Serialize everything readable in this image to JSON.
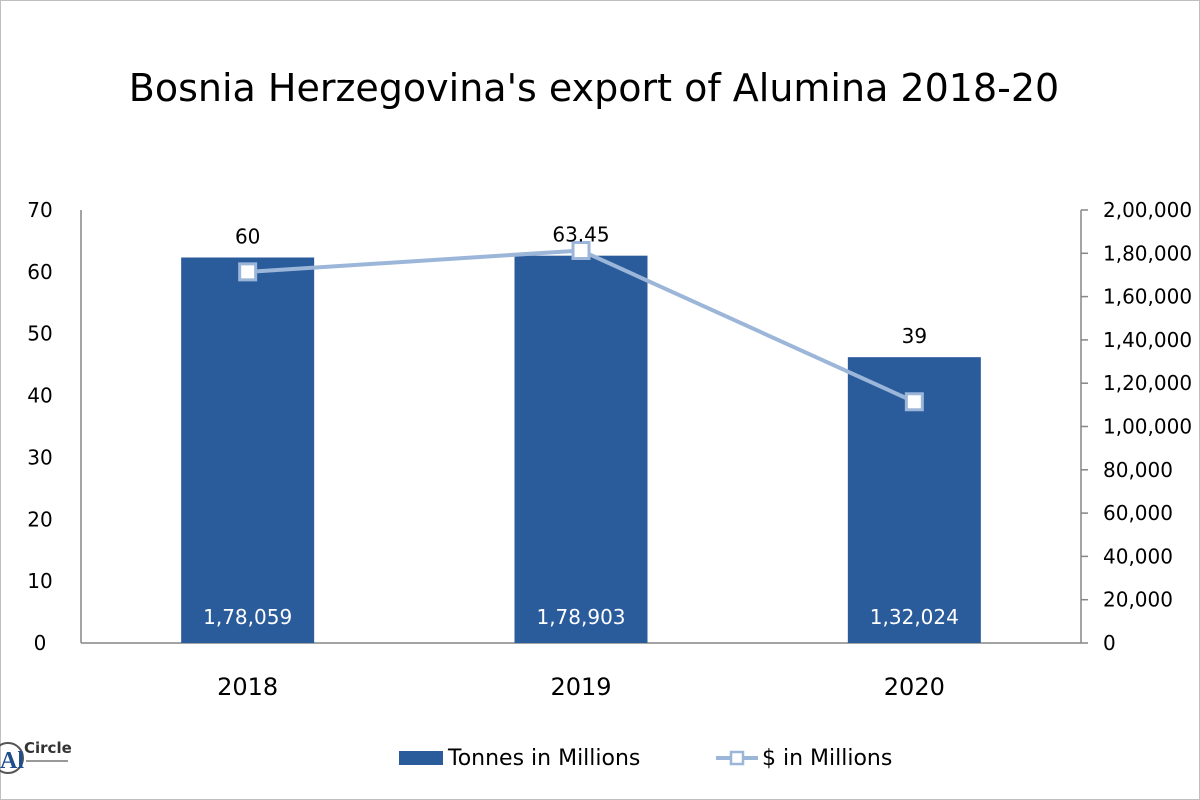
{
  "chart_data": {
    "type": "bar",
    "title": "Bosnia Herzegovina's export of Alumina 2018-20",
    "categories": [
      "2018",
      "2019",
      "2020"
    ],
    "series": [
      {
        "name": "Tonnes in Millions",
        "kind": "bar",
        "axis": "secondary",
        "values": [
          178059,
          178903,
          132024
        ],
        "value_labels": [
          "1,78,059",
          "1,78,903",
          "1,32,024"
        ],
        "color": "#2a5b9b"
      },
      {
        "name": "$ in Millions",
        "kind": "line",
        "axis": "primary",
        "values": [
          60,
          63.45,
          39
        ],
        "value_labels": [
          "60",
          "63.45",
          "39"
        ],
        "color": "#9cb6d9"
      }
    ],
    "y_primary": {
      "min": 0,
      "max": 70,
      "ticks": [
        "0",
        "10",
        "20",
        "30",
        "40",
        "50",
        "60",
        "70"
      ]
    },
    "y_secondary": {
      "min": 0,
      "max": 200000,
      "ticks": [
        "0",
        "20,000",
        "40,000",
        "60,000",
        "80,000",
        "1,00,000",
        "1,20,000",
        "1,40,000",
        "1,60,000",
        "1,80,000",
        "2,00,000"
      ]
    },
    "grid": false,
    "legend": "bottom"
  },
  "logo": {
    "text": "Circle",
    "mark": "Al"
  }
}
